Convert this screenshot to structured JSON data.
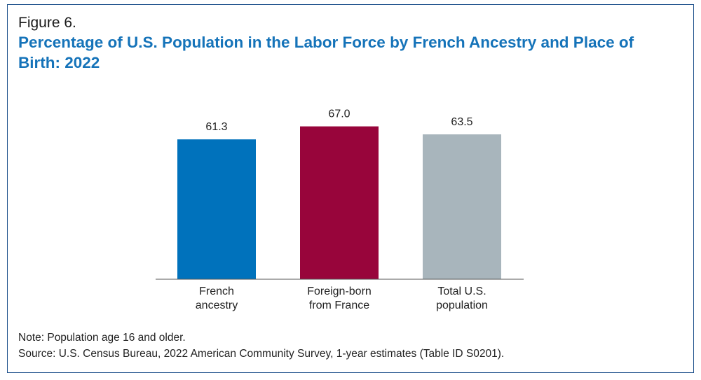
{
  "figure": {
    "label": "Figure 6.",
    "title": "Percentage of U.S. Population in the Labor Force by French Ancestry and Place of Birth: 2022"
  },
  "chart_data": {
    "type": "bar",
    "categories": [
      [
        "French",
        "ancestry"
      ],
      [
        "Foreign-born",
        "from France"
      ],
      [
        "Total U.S.",
        "population"
      ]
    ],
    "values": [
      61.3,
      67.0,
      63.5
    ],
    "value_labels": [
      "61.3",
      "67.0",
      "63.5"
    ],
    "colors": [
      "#0072bc",
      "#98053b",
      "#a8b5bc"
    ],
    "ylim": [
      0,
      75
    ],
    "grid": false,
    "legend": "none"
  },
  "footer": {
    "note": "Note: Population age 16 and older.",
    "source": "Source: U.S. Census Bureau, 2022 American Community Survey, 1-year estimates (Table ID S0201)."
  }
}
